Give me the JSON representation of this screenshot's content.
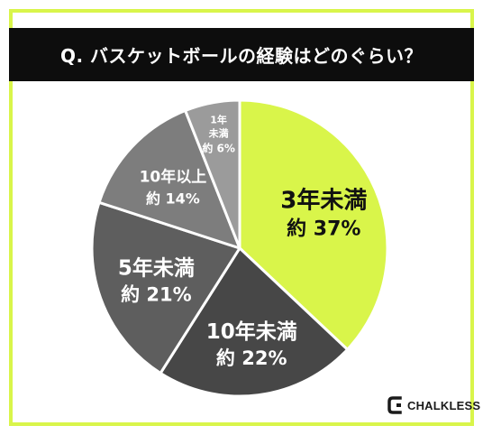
{
  "title": "Q. バスケットボールの経験はどのぐらい？",
  "chart_data": {
    "type": "pie",
    "title": "Q. バスケットボールの経験はどのぐらい？",
    "slices": [
      {
        "label": "3年未満",
        "value_label": "約 37%",
        "value": 37,
        "color": "#d9f54a"
      },
      {
        "label": "10年未満",
        "value_label": "約 22%",
        "value": 22,
        "color": "#474747"
      },
      {
        "label": "5年未満",
        "value_label": "約 21%",
        "value": 21,
        "color": "#5e5e5e"
      },
      {
        "label": "10年以上",
        "value_label": "約 14%",
        "value": 14,
        "color": "#7d7d7d"
      },
      {
        "label": "1年未満",
        "value_label": "約 6%",
        "value": 6,
        "color": "#9b9b9b"
      }
    ]
  },
  "brand": {
    "name": "CHALKLESS"
  }
}
